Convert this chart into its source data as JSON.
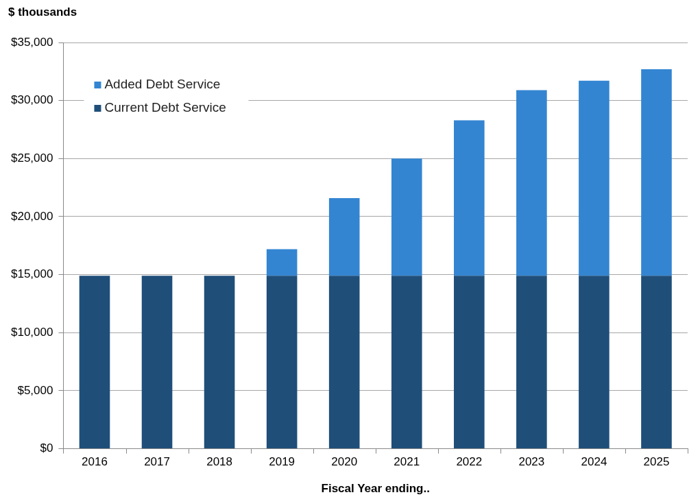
{
  "chart_data": {
    "type": "bar",
    "stacked": true,
    "ylabel": "$ thousands",
    "xlabel": "Fiscal Year ending..",
    "categories": [
      "2016",
      "2017",
      "2018",
      "2019",
      "2020",
      "2021",
      "2022",
      "2023",
      "2024",
      "2025"
    ],
    "series": [
      {
        "name": "Current Debt Service",
        "color": "#1f4e79",
        "values": [
          14900,
          14900,
          14900,
          14900,
          14900,
          14900,
          14900,
          14900,
          14900,
          14900
        ]
      },
      {
        "name": "Added Debt Service",
        "color": "#3385d1",
        "values": [
          null,
          null,
          null,
          2300,
          6700,
          10100,
          13400,
          16000,
          16800,
          17800
        ]
      }
    ],
    "ylim": [
      0,
      35000
    ],
    "yticks": [
      {
        "value": 0,
        "label": "$0"
      },
      {
        "value": 5000,
        "label": "$5,000"
      },
      {
        "value": 10000,
        "label": "$10,000"
      },
      {
        "value": 15000,
        "label": "$15,000"
      },
      {
        "value": 20000,
        "label": "$20,000"
      },
      {
        "value": 25000,
        "label": "$25,000"
      },
      {
        "value": 30000,
        "label": "$30,000"
      },
      {
        "value": 35000,
        "label": "$35,000"
      }
    ],
    "grid": "y",
    "legend": "top left"
  }
}
